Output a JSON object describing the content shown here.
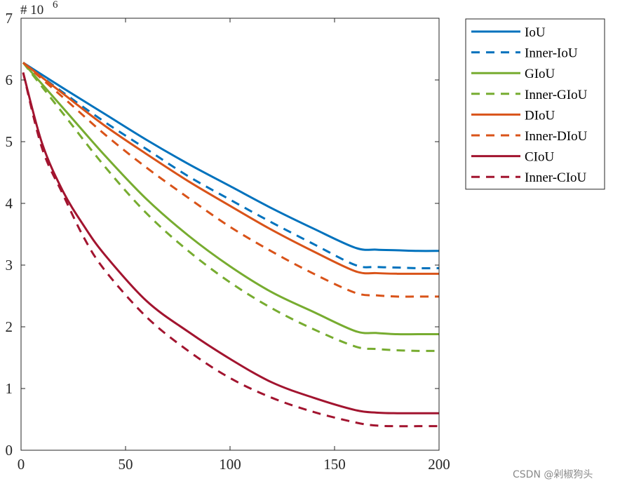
{
  "chart_data": {
    "type": "line",
    "title": "",
    "xlabel": "",
    "ylabel": "",
    "y_multiplier_label": "# 10",
    "y_multiplier_exponent": "6",
    "xlim": [
      0,
      200
    ],
    "ylim": [
      0,
      7
    ],
    "x_ticks": [
      0,
      50,
      100,
      150,
      200
    ],
    "y_ticks": [
      0,
      1,
      2,
      3,
      4,
      5,
      6,
      7
    ],
    "grid": false,
    "legend_position": "outside-top-right",
    "series": [
      {
        "name": "IoU",
        "color": "#0072BD",
        "style": "solid",
        "x": [
          1,
          20,
          40,
          60,
          80,
          100,
          120,
          140,
          160,
          170,
          180,
          190,
          200
        ],
        "y": [
          6.28,
          5.87,
          5.45,
          5.03,
          4.64,
          4.28,
          3.92,
          3.59,
          3.28,
          3.25,
          3.24,
          3.23,
          3.23
        ]
      },
      {
        "name": "Inner-IoU",
        "color": "#0072BD",
        "style": "dashed",
        "x": [
          1,
          20,
          40,
          60,
          80,
          100,
          120,
          140,
          160,
          170,
          180,
          190,
          200
        ],
        "y": [
          6.28,
          5.8,
          5.32,
          4.88,
          4.44,
          4.06,
          3.69,
          3.34,
          3.0,
          2.97,
          2.96,
          2.95,
          2.95
        ]
      },
      {
        "name": "GIoU",
        "color": "#77AC30",
        "style": "solid",
        "x": [
          1,
          20,
          40,
          60,
          80,
          100,
          120,
          140,
          160,
          170,
          180,
          190,
          200
        ],
        "y": [
          6.28,
          5.55,
          4.78,
          4.07,
          3.48,
          2.98,
          2.56,
          2.24,
          1.93,
          1.9,
          1.88,
          1.88,
          1.88
        ]
      },
      {
        "name": "Inner-GIoU",
        "color": "#77AC30",
        "style": "dashed",
        "x": [
          1,
          20,
          40,
          60,
          80,
          100,
          120,
          140,
          160,
          170,
          180,
          190,
          200
        ],
        "y": [
          6.28,
          5.46,
          4.6,
          3.84,
          3.23,
          2.72,
          2.3,
          1.96,
          1.68,
          1.64,
          1.62,
          1.61,
          1.61
        ]
      },
      {
        "name": "DIoU",
        "color": "#D95319",
        "style": "solid",
        "x": [
          1,
          20,
          40,
          60,
          80,
          100,
          120,
          140,
          160,
          170,
          180,
          190,
          200
        ],
        "y": [
          6.28,
          5.78,
          5.26,
          4.8,
          4.36,
          3.96,
          3.57,
          3.22,
          2.9,
          2.87,
          2.86,
          2.86,
          2.86
        ]
      },
      {
        "name": "Inner-DIoU",
        "color": "#D95319",
        "style": "dashed",
        "x": [
          1,
          20,
          40,
          60,
          80,
          100,
          120,
          140,
          160,
          170,
          180,
          190,
          200
        ],
        "y": [
          6.28,
          5.72,
          5.12,
          4.58,
          4.09,
          3.62,
          3.22,
          2.86,
          2.55,
          2.51,
          2.49,
          2.49,
          2.49
        ]
      },
      {
        "name": "CIoU",
        "color": "#A2142F",
        "style": "solid",
        "x": [
          1,
          10,
          20,
          30,
          40,
          60,
          80,
          100,
          120,
          140,
          160,
          170,
          180,
          190,
          200
        ],
        "y": [
          6.12,
          4.98,
          4.2,
          3.64,
          3.17,
          2.42,
          1.92,
          1.48,
          1.1,
          0.85,
          0.65,
          0.61,
          0.6,
          0.6,
          0.6
        ]
      },
      {
        "name": "Inner-CIoU",
        "color": "#A2142F",
        "style": "dashed",
        "x": [
          1,
          10,
          20,
          30,
          40,
          60,
          80,
          100,
          120,
          140,
          160,
          170,
          180,
          190,
          200
        ],
        "y": [
          6.12,
          4.9,
          4.15,
          3.45,
          2.92,
          2.16,
          1.61,
          1.17,
          0.85,
          0.62,
          0.45,
          0.4,
          0.39,
          0.39,
          0.39
        ]
      }
    ]
  },
  "watermark": "CSDN @剁椒狗头"
}
